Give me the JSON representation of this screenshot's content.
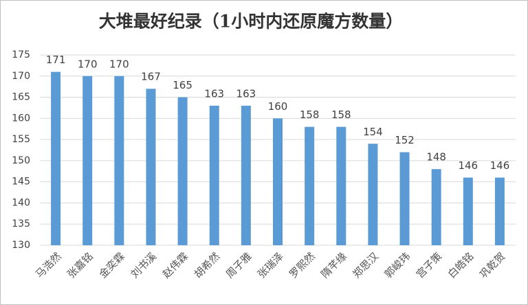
{
  "chart_data": {
    "type": "bar",
    "title": "大堆最好纪录（1小时内还原魔方数量）",
    "categories": [
      "马浩然",
      "张嘉铭",
      "金奕霖",
      "刘书溪",
      "赵伟霖",
      "胡希然",
      "周子雅",
      "张瑞泽",
      "罗熙然",
      "隋芊缘",
      "郑思汉",
      "郭峻玮",
      "宫子策",
      "白皓铭",
      "巩乾贺"
    ],
    "values": [
      171,
      170,
      170,
      167,
      165,
      163,
      163,
      160,
      158,
      158,
      154,
      152,
      148,
      146,
      146
    ],
    "color": "#5b9bd5",
    "ylim": [
      130,
      175
    ],
    "yticks": [
      130,
      135,
      140,
      145,
      150,
      155,
      160,
      165,
      170,
      175
    ],
    "grid": true
  }
}
